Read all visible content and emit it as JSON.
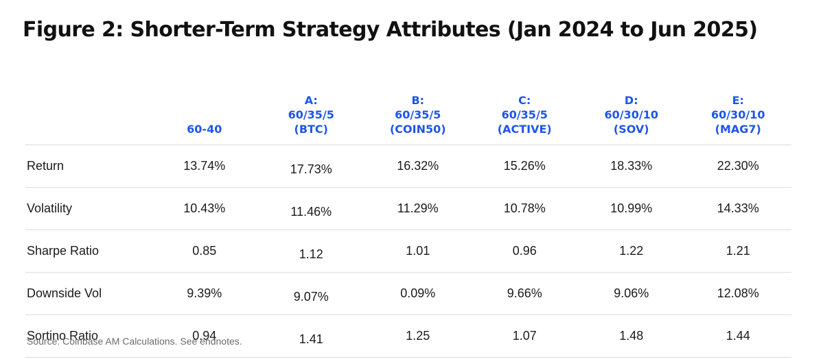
{
  "title": "Figure 2: Shorter-Term Strategy Attributes (Jan 2024 to Jun 2025)",
  "columns": [
    {
      "lines": [
        "60-40"
      ]
    },
    {
      "lines": [
        "A:",
        "60/35/5",
        "(BTC)"
      ]
    },
    {
      "lines": [
        "B:",
        "60/35/5",
        "(COIN50)"
      ]
    },
    {
      "lines": [
        "C:",
        "60/35/5",
        "(ACTIVE)"
      ]
    },
    {
      "lines": [
        "D:",
        "60/30/10",
        "(SOV)"
      ]
    },
    {
      "lines": [
        "E:",
        "60/30/10",
        "(MAG7)"
      ]
    }
  ],
  "rows": [
    {
      "label": "Return",
      "values": [
        "13.74%",
        "17.73%",
        "16.32%",
        "15.26%",
        "18.33%",
        "22.30%"
      ]
    },
    {
      "label": "Volatility",
      "values": [
        "10.43%",
        "11.46%",
        "11.29%",
        "10.78%",
        "10.99%",
        "14.33%"
      ]
    },
    {
      "label": "Sharpe Ratio",
      "values": [
        "0.85",
        "1.12",
        "1.01",
        "0.96",
        "1.22",
        "1.21"
      ]
    },
    {
      "label": "Downside Vol",
      "values": [
        "9.39%",
        "9.07%",
        "0.09%",
        "9.66%",
        "9.06%",
        "12.08%"
      ]
    },
    {
      "label": "Sortino Ratio",
      "values": [
        "0.94",
        "1.41",
        "1.25",
        "1.07",
        "1.48",
        "1.44"
      ]
    }
  ],
  "source": "Source: Coinbase AM Calculations. See endnotes.",
  "colors": {
    "header_accent": "#1f55e8",
    "text": "#1a1a1a",
    "rule": "#dcdcdc",
    "source": "#6b6b6b"
  }
}
